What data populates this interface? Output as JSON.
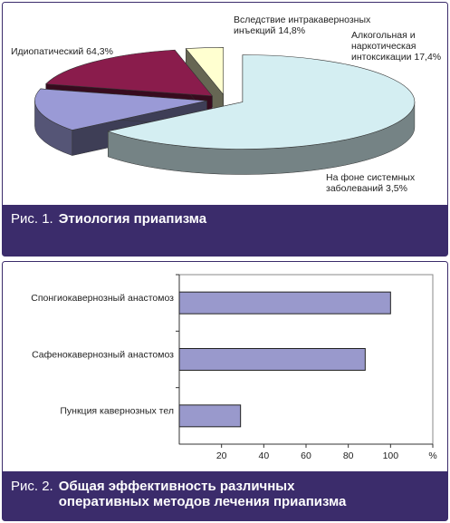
{
  "chart_data": [
    {
      "type": "pie",
      "categories": [
        "Идиопатический",
        "Вследствие интракавернозных инъекций",
        "Алкогольная и наркотическая интоксикации",
        "На фоне системных заболеваний"
      ],
      "values": [
        64.3,
        14.8,
        17.4,
        3.5
      ],
      "value_labels": [
        "64,3%",
        "14,8%",
        "17,4%",
        "3,5%"
      ],
      "colors": [
        "#d4eef2",
        "#9a9ad6",
        "#8a1c4c",
        "#ffffd0"
      ],
      "caption_prefix": "Рис. 1.",
      "caption": "Этиология приапизма"
    },
    {
      "type": "bar",
      "categories": [
        "Спонгиокавернозный анастомоз",
        "Сафенокавернозный анастомоз",
        "Пункция кавернозных тел"
      ],
      "values": [
        100,
        88,
        29
      ],
      "color": "#9999cc",
      "xlim": [
        0,
        120
      ],
      "xticks": [
        20,
        40,
        60,
        80,
        100,
        {
          "value": 120,
          "label": "%"
        }
      ],
      "caption_prefix": "Рис. 2.",
      "caption": "Общая эффективность различных оперативных методов лечения приапизма"
    }
  ]
}
